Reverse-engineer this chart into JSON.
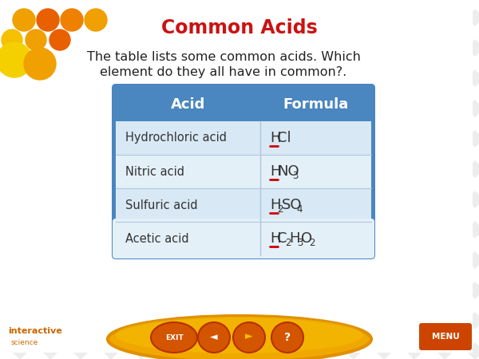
{
  "title": "Common Acids",
  "title_color": "#cc1111",
  "subtitle_line1": "The table lists some common acids. Which",
  "subtitle_line2": "element do they all have in common?.",
  "subtitle_color": "#222222",
  "bg_color": "#ffffff",
  "diamond_color": "#d8d8d8",
  "header_bg": "#4a86c0",
  "header_text_color": "#ffffff",
  "header_col1": "Acid",
  "header_col2": "Formula",
  "row_bg_odd": "#d8e8f4",
  "row_bg_even": "#e4f0f8",
  "row_text_color": "#333333",
  "acids": [
    "Hydrochloric acid",
    "Nitric acid",
    "Sulfuric acid",
    "Acetic acid"
  ],
  "formulas_plain": [
    "HCl",
    "HNO3",
    "H2SO4",
    "HC2H3O2"
  ],
  "formula_h_underline_color": "#cc0000",
  "footer_ellipse_color": "#f0a800",
  "footer_ellipse_inner": "#f5c000",
  "interactive_text": "interactive",
  "science_text": "science",
  "interactive_color": "#cc6600",
  "science_color": "#cc6600",
  "menu_bg": "#cc4400",
  "menu_text": "MENU",
  "exit_text": "EXIT"
}
